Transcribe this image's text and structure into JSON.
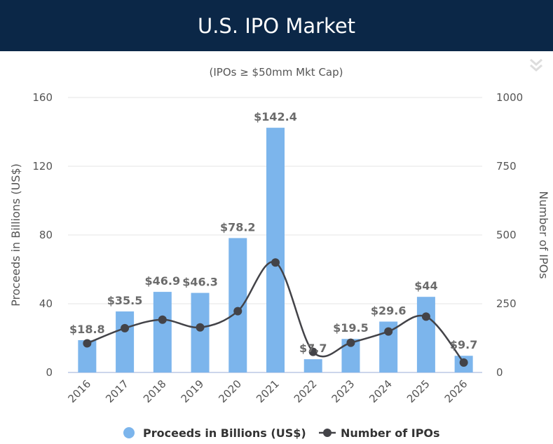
{
  "header": {
    "title": "U.S. IPO Market"
  },
  "chart_data": {
    "type": "bar",
    "title": "U.S. IPO Market",
    "subtitle": "(IPOs ≥ $50mm Mkt Cap)",
    "categories": [
      "2016",
      "2017",
      "2018",
      "2019",
      "2020",
      "2021",
      "2022",
      "2023",
      "2024",
      "2025",
      "2026"
    ],
    "series": [
      {
        "name": "Proceeds in Billions (US$)",
        "type": "bar",
        "axis": "left",
        "color": "#7cb5ec",
        "values": [
          18.8,
          35.5,
          46.9,
          46.3,
          78.2,
          142.4,
          7.7,
          19.5,
          29.6,
          44,
          9.7
        ],
        "labels": [
          "$18.8",
          "$35.5",
          "$46.9",
          "$46.3",
          "$78.2",
          "$142.4",
          "$7.7",
          "$19.5",
          "$29.6",
          "$44",
          "$9.7"
        ]
      },
      {
        "name": "Number of IPOs",
        "type": "line",
        "axis": "right",
        "color": "#434348",
        "values": [
          106,
          161,
          192,
          164,
          223,
          400,
          75,
          108,
          149,
          203,
          36
        ]
      }
    ],
    "ylabel": "Proceeds in Billions (US$)",
    "ylabel_right": "Number of IPOs",
    "ylim": [
      0,
      160
    ],
    "yticks": [
      0,
      40,
      80,
      120,
      160
    ],
    "ylim_right": [
      0,
      1000
    ],
    "yticks_right": [
      0,
      250,
      500,
      750,
      1000
    ],
    "grid": true,
    "legend": "bottom"
  }
}
